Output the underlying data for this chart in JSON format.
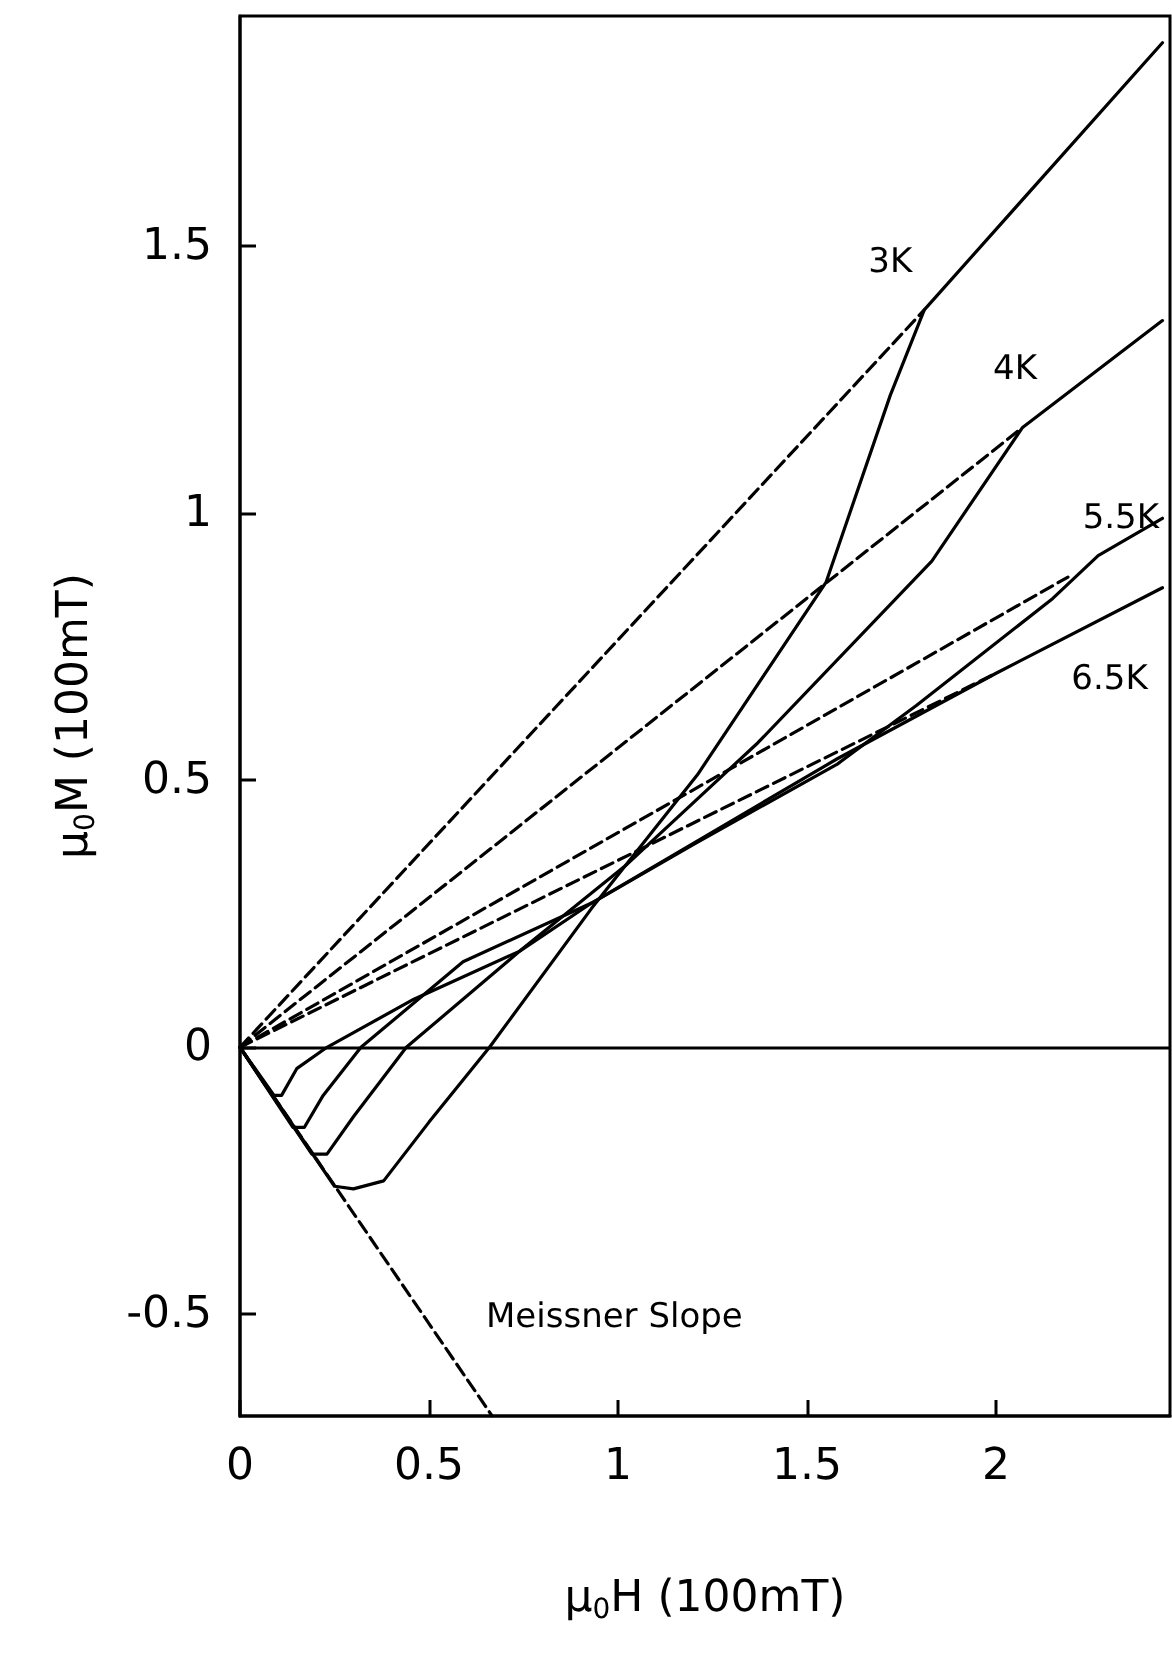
{
  "chart_data": {
    "type": "line",
    "xlabel": "μ$_{0}$H (100mT)",
    "ylabel": "μ$_{0}$M (100mT)",
    "xlim": [
      0,
      2.46
    ],
    "ylim": [
      -0.69,
      1.93
    ],
    "xticks": [
      0,
      0.5,
      1,
      1.5,
      2
    ],
    "yticks": [
      -0.5,
      0,
      0.5,
      1,
      1.5
    ],
    "grid": false,
    "marker": "none",
    "line_style": "solid",
    "series": [
      {
        "color": "#000000",
        "x": [
          0,
          0.25,
          0.3,
          0.38,
          0.5,
          0.66,
          0.93,
          1.21,
          1.55,
          1.72,
          1.81,
          2.44
        ],
        "values": [
          0,
          -0.26,
          -0.265,
          -0.25,
          -0.14,
          0,
          0.26,
          0.51,
          0.87,
          1.22,
          1.38,
          1.88
        ]
      },
      {
        "color": "#000000",
        "x": [
          0,
          0.19,
          0.23,
          0.3,
          0.44,
          0.74,
          1.02,
          1.37,
          1.83,
          2.07,
          2.44
        ],
        "values": [
          0,
          -0.2,
          -0.2,
          -0.13,
          0,
          0.18,
          0.34,
          0.57,
          0.91,
          1.16,
          1.36
        ]
      },
      {
        "color": "#000000",
        "x": [
          0,
          0.14,
          0.17,
          0.22,
          0.32,
          0.59,
          0.93,
          1.2,
          1.58,
          1.79,
          2.15,
          2.27,
          2.44
        ],
        "values": [
          0,
          -0.15,
          -0.15,
          -0.09,
          0,
          0.16,
          0.27,
          0.38,
          0.53,
          0.64,
          0.84,
          0.92,
          0.99
        ]
      },
      {
        "color": "#000000",
        "x": [
          0,
          0.09,
          0.11,
          0.15,
          0.23,
          0.46,
          0.74,
          0.93,
          1.58,
          2.0,
          2.44
        ],
        "values": [
          0,
          -0.09,
          -0.09,
          -0.04,
          0,
          0.09,
          0.18,
          0.27,
          0.54,
          0.7,
          0.86
        ]
      },
      {
        "color": "#000000",
        "line_style": "dashed",
        "x": [
          0,
          1.81
        ],
        "values": [
          0,
          1.38
        ]
      },
      {
        "color": "#000000",
        "line_style": "dashed",
        "x": [
          0,
          2.07
        ],
        "values": [
          0,
          1.16
        ]
      },
      {
        "color": "#000000",
        "line_style": "dashed",
        "x": [
          0,
          2.19
        ],
        "values": [
          0,
          0.88
        ]
      },
      {
        "color": "#000000",
        "line_style": "dashed",
        "x": [
          0,
          2.0
        ],
        "values": [
          0,
          0.7
        ]
      },
      {
        "color": "#000000",
        "line_style": "dashed",
        "x": [
          0,
          0.667
        ],
        "values": [
          0,
          -0.69
        ]
      }
    ],
    "ref_lines": [
      {
        "axis": "y",
        "value": 0,
        "color": "#000000",
        "line_style": "solid"
      }
    ],
    "annotations": [
      {
        "text": "3K",
        "x": 1.72,
        "y": 1.47
      },
      {
        "text": "4K",
        "x": 2.05,
        "y": 1.27
      },
      {
        "text": "5.5K",
        "x": 2.33,
        "y": 0.99
      },
      {
        "text": "6.5K",
        "x": 2.3,
        "y": 0.69
      },
      "Meissner Slope"
    ]
  }
}
